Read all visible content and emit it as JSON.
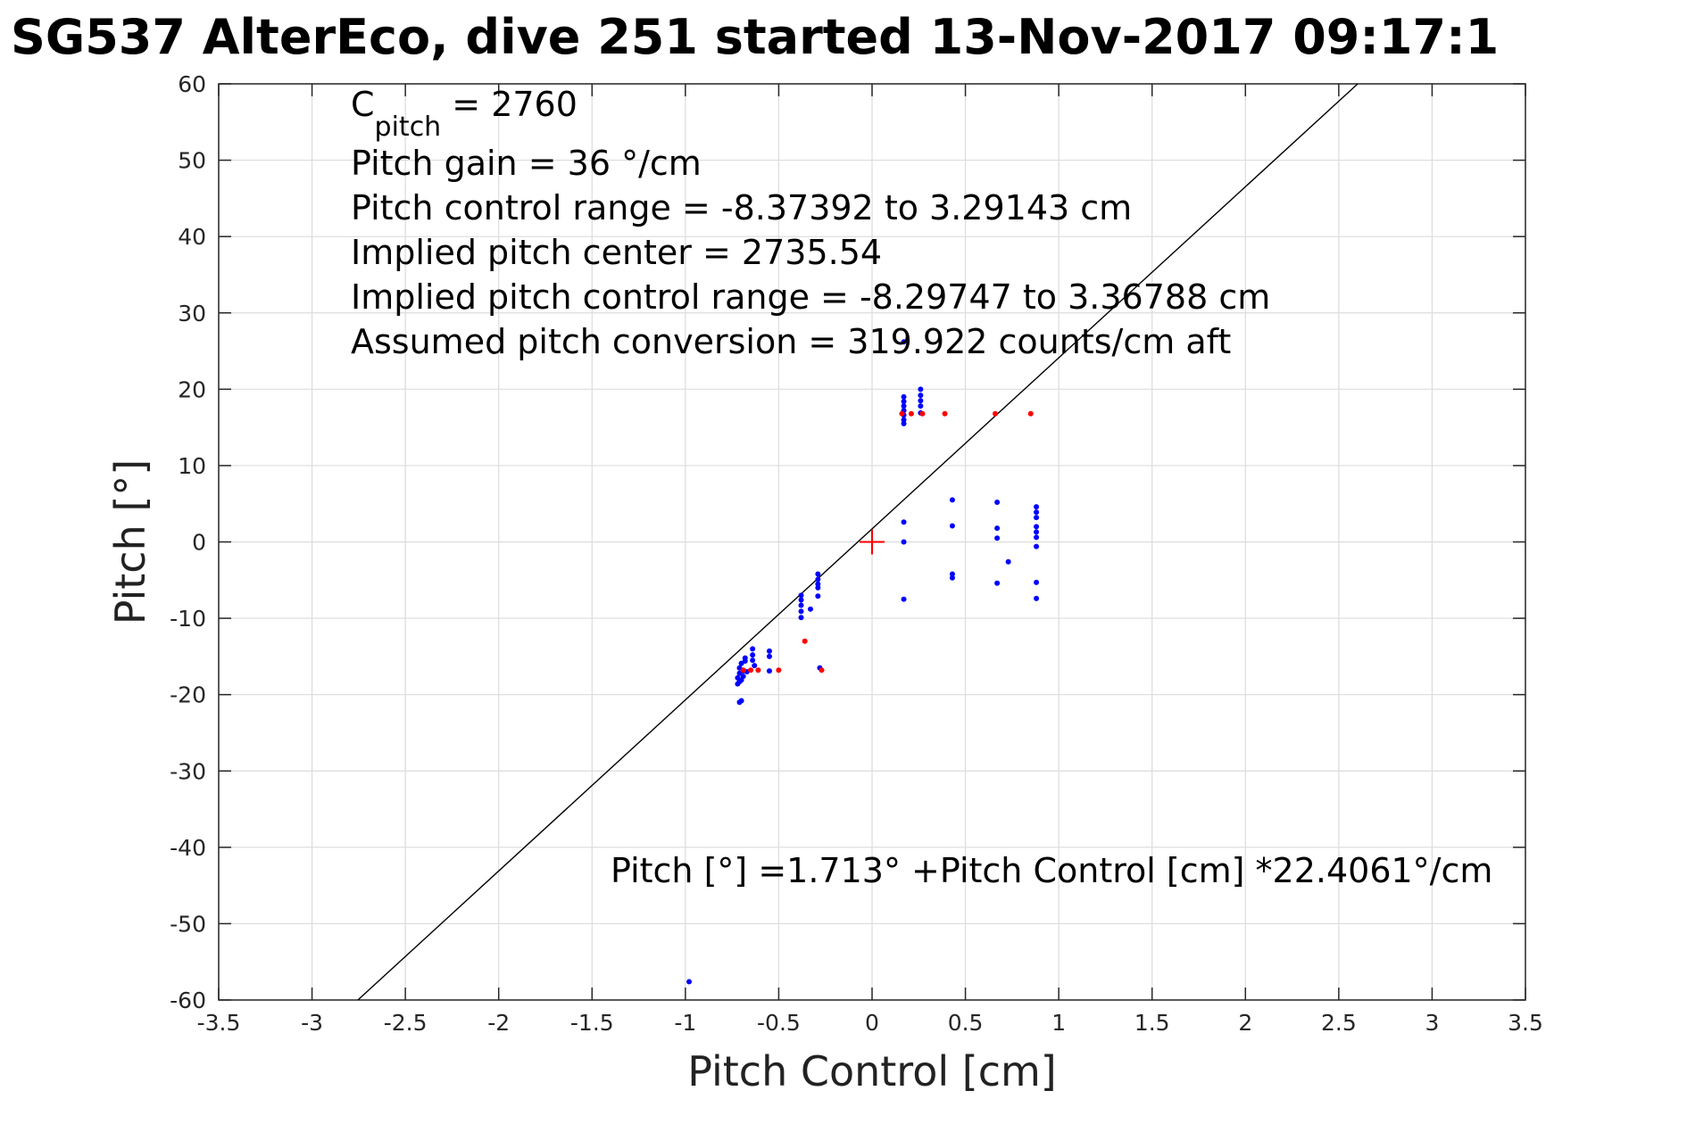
{
  "chart_data": {
    "type": "scatter",
    "title": "SG537 AlterEco, dive 251 started 13-Nov-2017 09:17:1",
    "xlabel": "Pitch Control [cm]",
    "ylabel": "Pitch [°]",
    "xlim": [
      -3.5,
      3.5
    ],
    "ylim": [
      -60,
      60
    ],
    "xticks": [
      -3.5,
      -3,
      -2.5,
      -2,
      -1.5,
      -1,
      -0.5,
      0,
      0.5,
      1,
      1.5,
      2,
      2.5,
      3,
      3.5
    ],
    "yticks": [
      -60,
      -50,
      -40,
      -30,
      -20,
      -10,
      0,
      10,
      20,
      30,
      40,
      50,
      60
    ],
    "grid": true,
    "annotations": {
      "c_pitch": {
        "prefix": "C",
        "subscript": "pitch",
        "suffix": " = 2760"
      },
      "lines": [
        "Pitch gain = 36 °/cm",
        "Pitch control range = -8.37392 to 3.29143 cm",
        "Implied pitch center = 2735.54",
        "Implied pitch control range = -8.29747 to 3.36788 cm",
        "Assumed pitch conversion = 319.922 counts/cm aft"
      ],
      "fit_equation": "Pitch [°] =1.713° +Pitch Control [cm] *22.4061°/cm"
    },
    "fit_line": {
      "intercept": 1.713,
      "slope": 22.4061
    },
    "center_marker": {
      "x": 0,
      "y": 0
    },
    "series": [
      {
        "color": "#0000ff",
        "points": [
          [
            -0.71,
            -16.5
          ],
          [
            -0.71,
            -17.2
          ],
          [
            -0.72,
            -17.8
          ],
          [
            -0.71,
            -18.3
          ],
          [
            -0.7,
            -18.1
          ],
          [
            -0.69,
            -17.6
          ],
          [
            -0.69,
            -16.9
          ],
          [
            -0.68,
            -15.6
          ],
          [
            -0.68,
            -15.2
          ],
          [
            -0.7,
            -15.9
          ],
          [
            -0.71,
            -21.0
          ],
          [
            -0.7,
            -20.8
          ],
          [
            -0.67,
            -17.0
          ],
          [
            -0.72,
            -18.6
          ],
          [
            -0.64,
            -14.0
          ],
          [
            -0.64,
            -14.8
          ],
          [
            -0.64,
            -15.5
          ],
          [
            -0.63,
            -16.2
          ],
          [
            -0.55,
            -14.3
          ],
          [
            -0.55,
            -15.0
          ],
          [
            -0.55,
            -16.9
          ],
          [
            -0.38,
            -7.0
          ],
          [
            -0.38,
            -7.6
          ],
          [
            -0.38,
            -8.3
          ],
          [
            -0.38,
            -9.1
          ],
          [
            -0.38,
            -9.9
          ],
          [
            -0.33,
            -8.8
          ],
          [
            -0.29,
            -4.2
          ],
          [
            -0.29,
            -4.9
          ],
          [
            -0.29,
            -5.5
          ],
          [
            -0.29,
            -6.0
          ],
          [
            -0.29,
            -7.1
          ],
          [
            -0.28,
            -16.5
          ],
          [
            0.17,
            16.0
          ],
          [
            0.17,
            16.6
          ],
          [
            0.17,
            17.2
          ],
          [
            0.17,
            17.8
          ],
          [
            0.17,
            18.4
          ],
          [
            0.17,
            19.0
          ],
          [
            0.17,
            15.5
          ],
          [
            0.17,
            2.6
          ],
          [
            0.17,
            0.0
          ],
          [
            0.17,
            -7.5
          ],
          [
            0.26,
            16.9
          ],
          [
            0.26,
            17.8
          ],
          [
            0.26,
            18.5
          ],
          [
            0.26,
            19.2
          ],
          [
            0.26,
            20.0
          ],
          [
            0.43,
            5.5
          ],
          [
            0.43,
            2.1
          ],
          [
            0.43,
            -4.2
          ],
          [
            0.43,
            -4.7
          ],
          [
            0.67,
            5.2
          ],
          [
            0.67,
            1.8
          ],
          [
            0.67,
            0.5
          ],
          [
            0.67,
            -5.4
          ],
          [
            0.73,
            -2.6
          ],
          [
            0.88,
            4.6
          ],
          [
            0.88,
            3.9
          ],
          [
            0.88,
            3.2
          ],
          [
            0.88,
            2.0
          ],
          [
            0.88,
            1.3
          ],
          [
            0.88,
            0.6
          ],
          [
            0.88,
            -0.6
          ],
          [
            0.88,
            -5.3
          ],
          [
            0.88,
            -7.4
          ],
          [
            -0.98,
            -57.6
          ],
          [
            0.17,
            26.2
          ]
        ]
      },
      {
        "color": "#ff0000",
        "points": [
          [
            -0.69,
            -16.8
          ],
          [
            -0.65,
            -16.8
          ],
          [
            -0.61,
            -16.8
          ],
          [
            -0.5,
            -16.8
          ],
          [
            -0.36,
            -13.0
          ],
          [
            -0.27,
            -16.8
          ],
          [
            0.16,
            16.8
          ],
          [
            0.21,
            16.8
          ],
          [
            0.27,
            16.8
          ],
          [
            0.39,
            16.8
          ],
          [
            0.66,
            16.8
          ],
          [
            0.85,
            16.8
          ]
        ]
      }
    ]
  }
}
